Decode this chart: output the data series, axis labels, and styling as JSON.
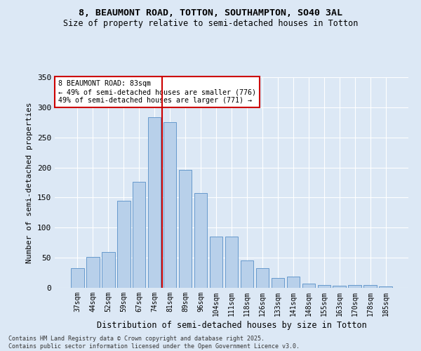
{
  "title": "8, BEAUMONT ROAD, TOTTON, SOUTHAMPTON, SO40 3AL",
  "subtitle": "Size of property relative to semi-detached houses in Totton",
  "xlabel": "Distribution of semi-detached houses by size in Totton",
  "ylabel": "Number of semi-detached properties",
  "categories": [
    "37sqm",
    "44sqm",
    "52sqm",
    "59sqm",
    "67sqm",
    "74sqm",
    "81sqm",
    "89sqm",
    "96sqm",
    "104sqm",
    "111sqm",
    "118sqm",
    "126sqm",
    "133sqm",
    "141sqm",
    "148sqm",
    "155sqm",
    "163sqm",
    "170sqm",
    "178sqm",
    "185sqm"
  ],
  "values": [
    33,
    51,
    60,
    145,
    176,
    283,
    275,
    196,
    157,
    85,
    85,
    46,
    33,
    16,
    19,
    7,
    5,
    3,
    5,
    5,
    2
  ],
  "bar_color": "#b8d0ea",
  "bar_edge_color": "#6699cc",
  "vline_color": "#cc0000",
  "annotation_title": "8 BEAUMONT ROAD: 83sqm",
  "annotation_line1": "← 49% of semi-detached houses are smaller (776)",
  "annotation_line2": "49% of semi-detached houses are larger (771) →",
  "annotation_box_color": "#cc0000",
  "background_color": "#dce8f5",
  "ylim": [
    0,
    350
  ],
  "yticks": [
    0,
    50,
    100,
    150,
    200,
    250,
    300,
    350
  ],
  "footer": "Contains HM Land Registry data © Crown copyright and database right 2025.\nContains public sector information licensed under the Open Government Licence v3.0."
}
